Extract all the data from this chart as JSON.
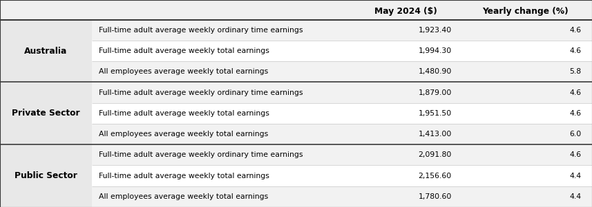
{
  "sectors": [
    {
      "name": "Australia",
      "rows": [
        [
          "Full-time adult average weekly ordinary time earnings",
          "1,923.40",
          "4.6"
        ],
        [
          "Full-time adult average weekly total earnings",
          "1,994.30",
          "4.6"
        ],
        [
          "All employees average weekly total earnings",
          "1,480.90",
          "5.8"
        ]
      ]
    },
    {
      "name": "Private Sector",
      "rows": [
        [
          "Full-time adult average weekly ordinary time earnings",
          "1,879.00",
          "4.6"
        ],
        [
          "Full-time adult average weekly total earnings",
          "1,951.50",
          "4.6"
        ],
        [
          "All employees average weekly total earnings",
          "1,413.00",
          "6.0"
        ]
      ]
    },
    {
      "name": "Public Sector",
      "rows": [
        [
          "Full-time adult average weekly ordinary time earnings",
          "2,091.80",
          "4.6"
        ],
        [
          "Full-time adult average weekly total earnings",
          "2,156.60",
          "4.4"
        ],
        [
          "All employees average weekly total earnings",
          "1,780.60",
          "4.4"
        ]
      ]
    }
  ],
  "header_col2": "May 2024 ($)",
  "header_col3": "Yearly change (%)",
  "col_bounds": [
    0.0,
    0.155,
    0.595,
    0.775,
    1.0
  ],
  "header_bg": "#f0f0f0",
  "row_bg_a": "#f2f2f2",
  "row_bg_b": "#ffffff",
  "sector_col_bg": "#e8e8e8",
  "border_thick": "#3a3a3a",
  "border_thin": "#c8c8c8",
  "text_color": "#000000",
  "header_fontsize": 8.8,
  "body_fontsize": 7.8,
  "sector_fontsize": 8.8
}
